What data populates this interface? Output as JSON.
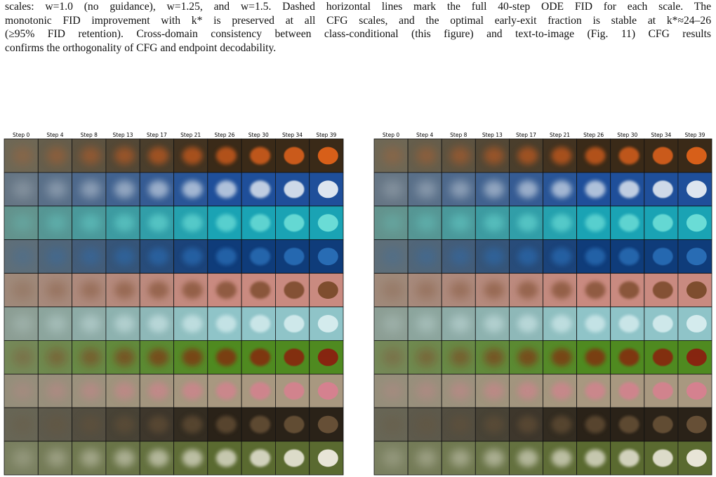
{
  "paragraph": [
    "scales: w=1.0 (no guidance), w=1.25, and w=1.5. Dashed horizontal lines mark the full 40-step ODE FID for each scale. The",
    "monotonic FID improvement with k* is preserved at all CFG scales, and the optimal early-exit fraction is stable at k*≈24–26",
    "(≥95% FID retention). Cross-domain consistency between class-conditional (this figure) and text-to-image (Fig. 11) CFG results",
    "confirms the orthogonality of CFG and endpoint decodability."
  ],
  "figure": {
    "panels": [
      {
        "step_labels": [
          "Step 0",
          "Step 4",
          "Step 8",
          "Step 13",
          "Step 17",
          "Step 21",
          "Step 26",
          "Step 30",
          "Step 34",
          "Step 39"
        ]
      },
      {
        "step_labels": [
          "Step 0",
          "Step 4",
          "Step 8",
          "Step 13",
          "Step 17",
          "Step 21",
          "Step 26",
          "Step 30",
          "Step 34",
          "Step 39"
        ]
      }
    ]
  }
}
